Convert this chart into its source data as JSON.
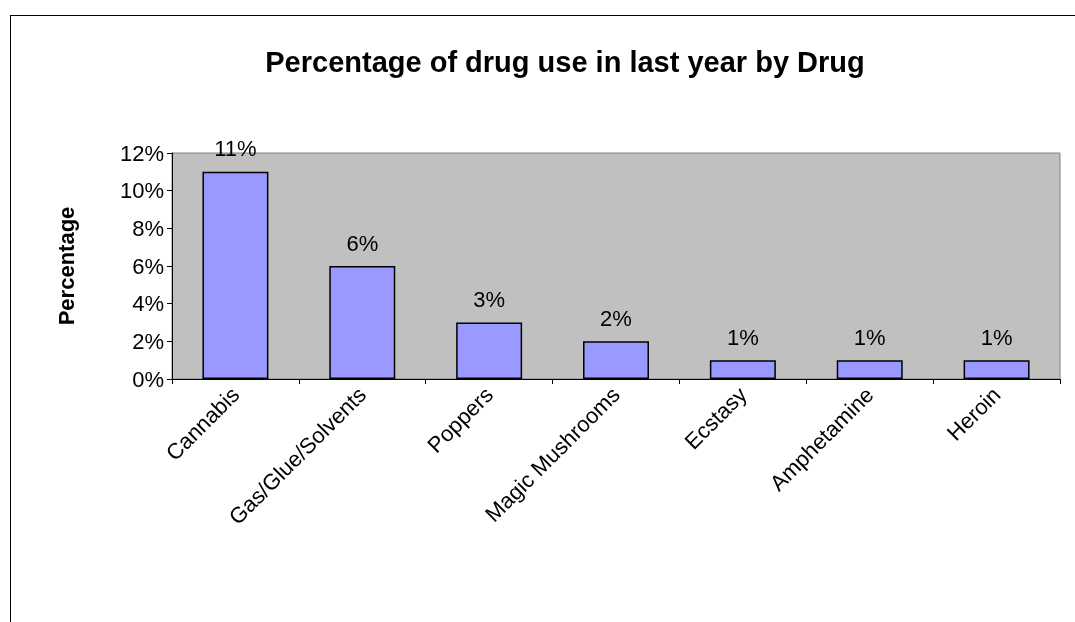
{
  "chart_data": {
    "type": "bar",
    "title": "Percentage of drug use in last year by Drug",
    "ylabel": "Percentage",
    "categories": [
      "Cannabis",
      "Gas/Glue/Solvents",
      "Poppers",
      "Magic Mushrooms",
      "Ecstasy",
      "Amphetamine",
      "Heroin"
    ],
    "values": [
      11,
      6,
      3,
      2,
      1,
      1,
      1
    ],
    "value_labels": [
      "11%",
      "6%",
      "3%",
      "2%",
      "1%",
      "1%",
      "1%"
    ],
    "color": "#9999ff",
    "ylim": [
      0,
      12
    ],
    "yticks": [
      {
        "value": 0,
        "label": "0%"
      },
      {
        "value": 2,
        "label": "2%"
      },
      {
        "value": 4,
        "label": "4%"
      },
      {
        "value": 6,
        "label": "6%"
      },
      {
        "value": 8,
        "label": "8%"
      },
      {
        "value": 10,
        "label": "10%"
      },
      {
        "value": 12,
        "label": "12%"
      }
    ]
  }
}
